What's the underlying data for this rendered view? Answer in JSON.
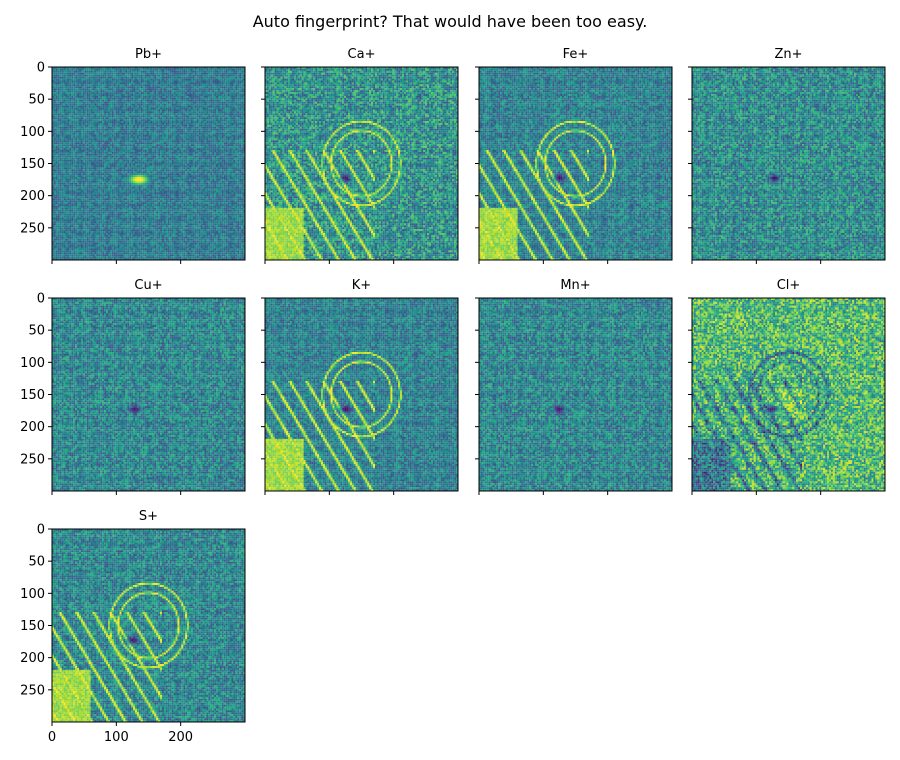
{
  "figure": {
    "title": "Auto fingerprint? That would have been too easy."
  },
  "chart_data": {
    "type": "heatmap",
    "title": "Auto fingerprint? That would have been too easy.",
    "colormap": "viridis",
    "image_size": [
      300,
      300
    ],
    "xlim": [
      0,
      300
    ],
    "ylim": [
      300,
      0
    ],
    "x_ticks": [
      0,
      100,
      200
    ],
    "y_ticks": [
      0,
      50,
      100,
      150,
      200,
      250
    ],
    "x_tick_labels": [
      "0",
      "100",
      "200"
    ],
    "y_tick_labels": [
      "0",
      "50",
      "100",
      "150",
      "200",
      "250"
    ],
    "panels": [
      {
        "name": "Pb+",
        "pattern": "blob-bright",
        "blob": [
          135,
          175
        ],
        "noise_level": 0.3
      },
      {
        "name": "Ca+",
        "pattern": "fingerprint-bright",
        "dark_spot": [
          125,
          173
        ],
        "noise_level": 0.5
      },
      {
        "name": "Fe+",
        "pattern": "fingerprint-bright",
        "dark_spot": [
          125,
          173
        ],
        "noise_level": 0.35
      },
      {
        "name": "Zn+",
        "pattern": "noise",
        "dark_spot": [
          128,
          173
        ],
        "noise_level": 0.45
      },
      {
        "name": "Cu+",
        "pattern": "noise",
        "dark_spot": [
          128,
          173
        ],
        "noise_level": 0.4
      },
      {
        "name": "K+",
        "pattern": "fingerprint-bright",
        "dark_spot": [
          125,
          173
        ],
        "noise_level": 0.35
      },
      {
        "name": "Mn+",
        "pattern": "noise",
        "dark_spot": [
          125,
          173
        ],
        "noise_level": 0.4
      },
      {
        "name": "Cl+",
        "pattern": "fingerprint-dark",
        "dark_spot": [
          125,
          173
        ],
        "noise_level": 0.55
      },
      {
        "name": "S+",
        "pattern": "fingerprint-bright",
        "dark_spot": [
          125,
          173
        ],
        "noise_level": 0.4
      }
    ]
  }
}
